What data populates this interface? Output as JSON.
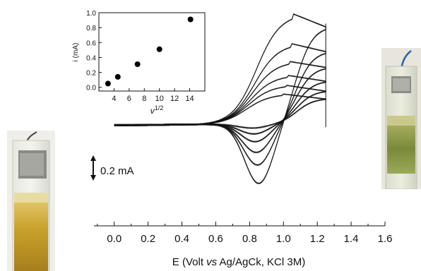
{
  "chart_data": [
    {
      "type": "line",
      "title": "",
      "xlabel_parts": [
        "E (Volt ",
        "vs",
        " Ag/AgCk, KCl 3M)"
      ],
      "ylabel": "",
      "xlim": [
        -0.12,
        1.6
      ],
      "xticks": [
        0.0,
        0.2,
        0.4,
        0.6,
        0.8,
        1.0,
        1.2,
        1.4,
        1.6
      ],
      "xtick_labels": [
        "0.0",
        "0.2",
        "0.4",
        "0.6",
        "0.8",
        "1.0",
        "1.2",
        "1.4",
        "1.6"
      ],
      "y_units": "mA",
      "scale_bar": {
        "label": "0.2 mA",
        "value_mA": 0.2
      },
      "switching_potential": 1.25,
      "series_note": "cyclic voltammograms recorded at increasing scan rates",
      "cycles": [
        {
          "anodic_peak_mA": 0.31,
          "anodic_end_mA": 0.26,
          "cathodic_peak_mA": -0.04
        },
        {
          "anodic_peak_mA": 0.4,
          "anodic_end_mA": 0.34,
          "cathodic_peak_mA": -0.1
        },
        {
          "anodic_peak_mA": 0.5,
          "anodic_end_mA": 0.44,
          "cathodic_peak_mA": -0.18
        },
        {
          "anodic_peak_mA": 0.64,
          "anodic_end_mA": 0.58,
          "cathodic_peak_mA": -0.29
        },
        {
          "anodic_peak_mA": 0.82,
          "anodic_end_mA": 0.74,
          "cathodic_peak_mA": -0.42
        },
        {
          "anodic_peak_mA": 1.12,
          "anodic_end_mA": 0.99,
          "cathodic_peak_mA": -0.61
        }
      ]
    },
    {
      "type": "scatter",
      "title": "",
      "xlabel_main": "v",
      "xlabel_sup": "1/2",
      "ylabel": "i (mA)",
      "xlim": [
        2,
        16
      ],
      "ylim": [
        -0.05,
        1.0
      ],
      "xticks": [
        4,
        6,
        8,
        10,
        12,
        14
      ],
      "yticks": [
        0.0,
        0.2,
        0.4,
        0.6,
        0.8,
        1.0
      ],
      "ytick_labels": [
        "0.0",
        "0.2",
        "0.4",
        "0.6",
        "0.8",
        "1.0"
      ],
      "x": [
        3.2,
        4.5,
        7.1,
        10.0,
        14.1
      ],
      "y": [
        0.05,
        0.14,
        0.31,
        0.51,
        0.91
      ]
    }
  ],
  "colors": {
    "trace": "#111111",
    "marker": "#000000",
    "photo_yellow": "#c9a12a",
    "photo_green": "#7a8a3a"
  }
}
